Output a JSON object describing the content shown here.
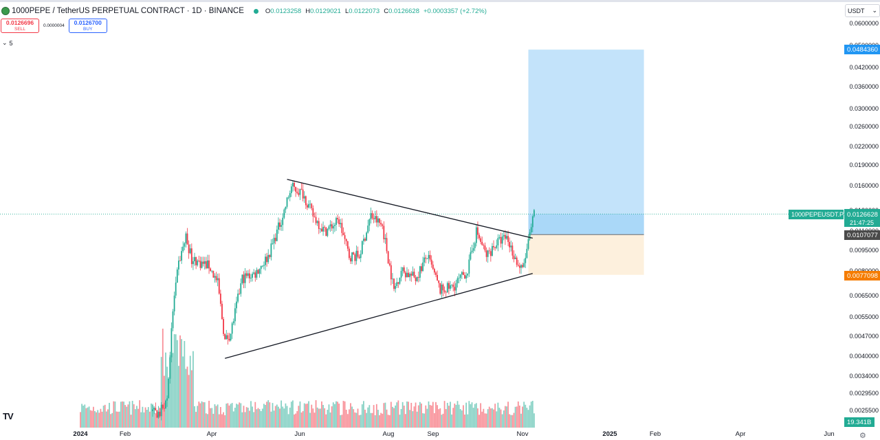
{
  "header": {
    "symbol_title": "1000PEPE / TetherUS PERPETUAL CONTRACT · 1D · BINANCE",
    "ohlc": {
      "open_label": "O",
      "open": "0.0123258",
      "high_label": "H",
      "high": "0.0129021",
      "low_label": "L",
      "low": "0.0122073",
      "close_label": "C",
      "close": "0.0126628",
      "change": "+0.0003357 (+2.72%)"
    }
  },
  "trade": {
    "sell_price": "0.0126696",
    "sell_label": "SELL",
    "spread": "0.0000004",
    "buy_price": "0.0126700",
    "buy_label": "BUY"
  },
  "indicators_collapse": {
    "count": "5"
  },
  "currency": {
    "label": "USDT",
    "icon": "chevron-down-icon"
  },
  "price_axis": {
    "ticks": [
      "0.0600000",
      "0.0500000",
      "0.0420000",
      "0.0360000",
      "0.0300000",
      "0.0260000",
      "0.0220000",
      "0.0190000",
      "0.0160000",
      "0.0130000",
      "0.0110000",
      "0.0095000",
      "0.0080000",
      "0.0065000",
      "0.0055000",
      "0.0047000",
      "0.0040000",
      "0.0034000",
      "0.0029500",
      "0.0025500"
    ],
    "target_label": "0.0484360",
    "entry_label": "0.0107077",
    "stop_label": "0.0077098",
    "last_price_label": "0.0126628",
    "countdown": "21:47:25",
    "symbol_badge": "1000PEPEUSDT.P",
    "volume_label": "19.341B"
  },
  "time_axis": {
    "labels": [
      "2024",
      "Feb",
      "Apr",
      "Jun",
      "Aug",
      "Sep",
      "Nov",
      "2025",
      "Feb",
      "Apr",
      "Jun"
    ]
  },
  "colors": {
    "up": "#22ab94",
    "down": "#f23645",
    "target_zone": "#c3e3fa",
    "target_zone_near": "#9fd3f7",
    "stop_zone": "#fdf0dd",
    "axis_blue": "#2196f3",
    "axis_orange": "#f57c00",
    "entry_gray": "#4a4a4a"
  },
  "chart_data": {
    "type": "candlestick",
    "title": "1000PEPE / TetherUS PERPETUAL CONTRACT · 1D · BINANCE",
    "y_scale": "log",
    "ylim": [
      0.0023,
      0.063
    ],
    "y_ticks": [
      0.06,
      0.05,
      0.042,
      0.036,
      0.03,
      0.026,
      0.022,
      0.019,
      0.016,
      0.013,
      0.011,
      0.0095,
      0.008,
      0.0065,
      0.0055,
      0.0047,
      0.004,
      0.0034,
      0.00295,
      0.00255
    ],
    "close_path": [
      {
        "date": "2024-02-25",
        "close": 0.0025
      },
      {
        "date": "2024-03-01",
        "close": 0.0028
      },
      {
        "date": "2024-03-05",
        "close": 0.0058
      },
      {
        "date": "2024-03-09",
        "close": 0.0085
      },
      {
        "date": "2024-03-14",
        "close": 0.0105
      },
      {
        "date": "2024-03-18",
        "close": 0.0088
      },
      {
        "date": "2024-03-24",
        "close": 0.0085
      },
      {
        "date": "2024-03-30",
        "close": 0.0083
      },
      {
        "date": "2024-04-05",
        "close": 0.0072
      },
      {
        "date": "2024-04-10",
        "close": 0.0045
      },
      {
        "date": "2024-04-14",
        "close": 0.0048
      },
      {
        "date": "2024-04-22",
        "close": 0.0075
      },
      {
        "date": "2024-05-01",
        "close": 0.0078
      },
      {
        "date": "2024-05-10",
        "close": 0.009
      },
      {
        "date": "2024-05-20",
        "close": 0.0125
      },
      {
        "date": "2024-05-26",
        "close": 0.0158
      },
      {
        "date": "2024-06-03",
        "close": 0.015
      },
      {
        "date": "2024-06-10",
        "close": 0.0125
      },
      {
        "date": "2024-06-18",
        "close": 0.011
      },
      {
        "date": "2024-06-28",
        "close": 0.012
      },
      {
        "date": "2024-07-05",
        "close": 0.009
      },
      {
        "date": "2024-07-12",
        "close": 0.009
      },
      {
        "date": "2024-07-20",
        "close": 0.0125
      },
      {
        "date": "2024-07-28",
        "close": 0.0115
      },
      {
        "date": "2024-08-05",
        "close": 0.0068
      },
      {
        "date": "2024-08-10",
        "close": 0.008
      },
      {
        "date": "2024-08-20",
        "close": 0.0075
      },
      {
        "date": "2024-08-28",
        "close": 0.009
      },
      {
        "date": "2024-09-06",
        "close": 0.0068
      },
      {
        "date": "2024-09-15",
        "close": 0.007
      },
      {
        "date": "2024-09-25",
        "close": 0.008
      },
      {
        "date": "2024-10-01",
        "close": 0.011
      },
      {
        "date": "2024-10-08",
        "close": 0.009
      },
      {
        "date": "2024-10-15",
        "close": 0.01
      },
      {
        "date": "2024-10-22",
        "close": 0.0105
      },
      {
        "date": "2024-10-30",
        "close": 0.0083
      },
      {
        "date": "2024-11-02",
        "close": 0.008
      },
      {
        "date": "2024-11-06",
        "close": 0.01
      },
      {
        "date": "2024-11-10",
        "close": 0.0126628
      }
    ],
    "annotations": {
      "triangle_upper": [
        {
          "date": "2024-05-23",
          "price": 0.0168
        },
        {
          "date": "2024-11-09",
          "price": 0.0104
        }
      ],
      "triangle_lower": [
        {
          "date": "2024-04-10",
          "price": 0.0039
        },
        {
          "date": "2024-11-09",
          "price": 0.0078
        }
      ],
      "long_position": {
        "start": "2024-11-06",
        "end": "2025-01-25",
        "target": 0.048436,
        "entry": 0.0107077,
        "stop": 0.0077098
      }
    }
  }
}
